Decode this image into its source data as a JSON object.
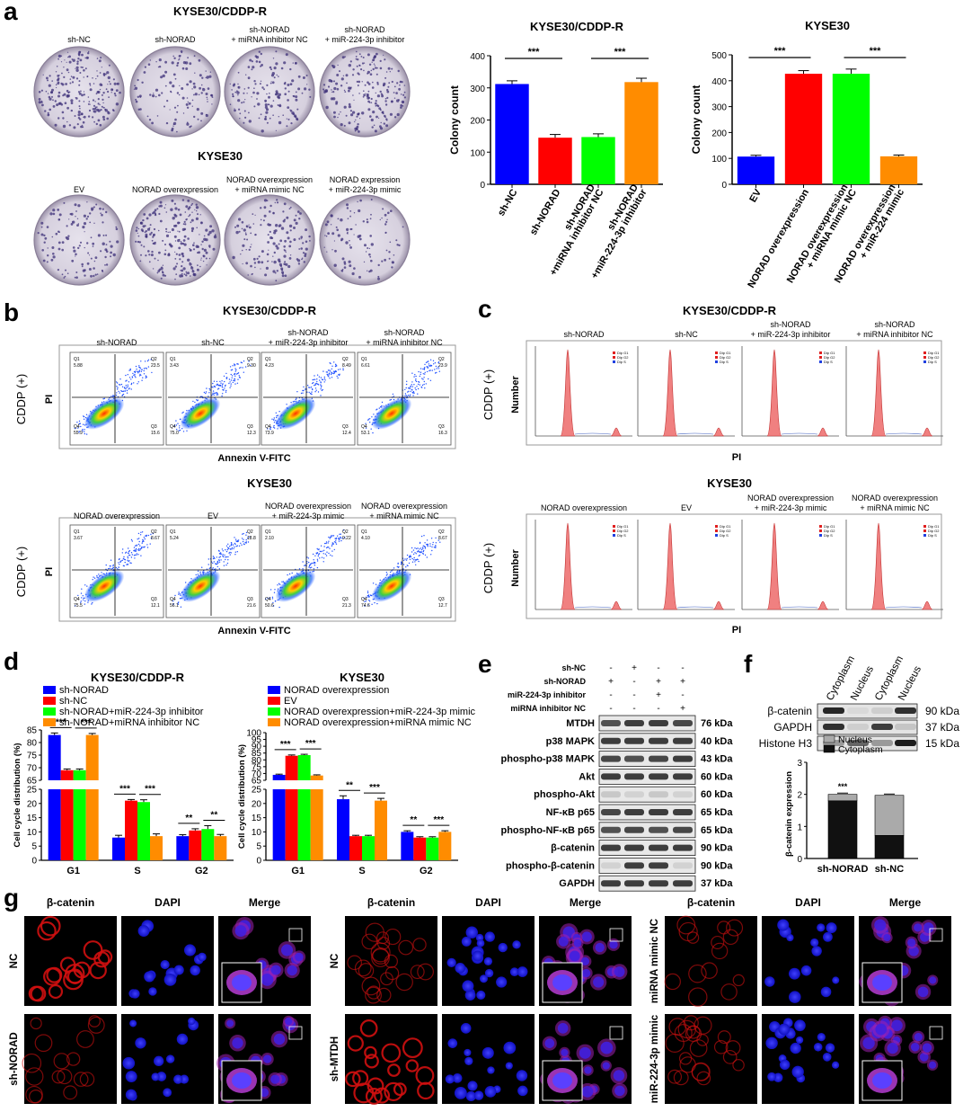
{
  "panels": {
    "a": "a",
    "b": "b",
    "c": "c",
    "d": "d",
    "e": "e",
    "f": "f",
    "g": "g"
  },
  "colony": {
    "title_top": "KYSE30/CDDP-R",
    "title_bottom": "KYSE30",
    "top_labels": [
      [
        "sh-NC"
      ],
      [
        "sh-NORAD"
      ],
      [
        "sh-NORAD",
        "+ miRNA inhibitor NC"
      ],
      [
        "sh-NORAD",
        "+ miR-224-3p inhibitor"
      ]
    ],
    "bottom_labels": [
      [
        "EV"
      ],
      [
        "NORAD overexpression"
      ],
      [
        "NORAD overexpression",
        "+ miRNA mimic NC"
      ],
      [
        "NORAD expression",
        "+ miR-224-3p mimic"
      ]
    ],
    "dish_density": [
      0.75,
      0.35,
      0.45,
      0.7,
      0.35,
      0.75,
      0.45,
      0.25
    ]
  },
  "flow": {
    "title_top": "KYSE30/CDDP-R",
    "title_bottom": "KYSE30",
    "row_label": "CDDP (+)",
    "ylabel": "PI",
    "xlabel": "Annexin V-FITC",
    "top_labels": [
      [
        "sh-NORAD"
      ],
      [
        "sh-NC"
      ],
      [
        "sh-NORAD",
        "+ miR-224-3p inhibitor"
      ],
      [
        "sh-NORAD",
        "+ miRNA inhibitor NC"
      ]
    ],
    "bottom_labels": [
      [
        "NORAD overexpression"
      ],
      [
        "EV"
      ],
      [
        "NORAD overexpression",
        "+ miR-224-3p mimic"
      ],
      [
        "NORAD overexpression",
        "+ miRNA mimic NC"
      ]
    ],
    "quadrants_top": [
      [
        "5.88",
        "23.5",
        "55.9",
        "15.6"
      ],
      [
        "3.43",
        "9.30",
        "75.0",
        "12.3"
      ],
      [
        "4.23",
        "8.49",
        "73.9",
        "12.4"
      ],
      [
        "6.61",
        "23.9",
        "53.1",
        "16.3"
      ]
    ],
    "quadrants_bottom": [
      [
        "3.67",
        "8.67",
        "75.5",
        "12.1"
      ],
      [
        "5.24",
        "18.8",
        "56.1",
        "21.6"
      ],
      [
        "2.10",
        "9.22",
        "50.6",
        "21.3"
      ],
      [
        "4.10",
        "8.67",
        "74.6",
        "12.7"
      ]
    ],
    "q_names": [
      "Q1",
      "Q2",
      "Q4",
      "Q3"
    ]
  },
  "cycle": {
    "title_top": "KYSE30/CDDP-R",
    "title_bottom": "KYSE30",
    "row_label": "CDDP (+)",
    "ylabel": "Number",
    "xlabel": "PI",
    "top_labels": [
      [
        "sh-NORAD"
      ],
      [
        "sh-NC"
      ],
      [
        "sh-NORAD",
        "+ miR-224-3p inhibitor"
      ],
      [
        "sh-NORAD",
        "+ miRNA inhibitor NC"
      ]
    ],
    "bottom_labels": [
      [
        "NORAD overexpression"
      ],
      [
        "EV"
      ],
      [
        "NORAD overexpression",
        "+ miR-224-3p mimic"
      ],
      [
        "NORAD overexpression",
        "+ miRNA mimic NC"
      ]
    ],
    "legend": [
      "Dip G1",
      "Dip G2",
      "Dip S"
    ]
  },
  "chart_data": [
    {
      "id": "a-left",
      "type": "bar",
      "title": "KYSE30/CDDP-R",
      "ylabel": "Colony count",
      "ylim": [
        0,
        400
      ],
      "yticks": [
        0,
        100,
        200,
        300,
        400
      ],
      "categories": [
        [
          "sh-NC"
        ],
        [
          "sh-NORAD"
        ],
        [
          "sh-NORAD",
          "+miRNA inhibitor NC"
        ],
        [
          "sh-NORAD",
          "+miR-224-3p inhibitor"
        ]
      ],
      "values": [
        312,
        145,
        147,
        318
      ],
      "errors": [
        10,
        10,
        10,
        12
      ],
      "colors": [
        "#0000ff",
        "#ff0000",
        "#00ff00",
        "#ff8c00"
      ],
      "significance": [
        {
          "from": 0,
          "to": 1,
          "label": "***"
        },
        {
          "from": 2,
          "to": 3,
          "label": "***"
        }
      ]
    },
    {
      "id": "a-right",
      "type": "bar",
      "title": "KYSE30",
      "ylabel": "Colony count",
      "ylim": [
        0,
        500
      ],
      "yticks": [
        0,
        100,
        200,
        300,
        400,
        500
      ],
      "categories": [
        [
          "EV"
        ],
        [
          "NORAD overexpression"
        ],
        [
          "NORAD overexpression",
          "+ miRNA mimic NC"
        ],
        [
          "NORAD overexpression",
          "+ miR-224 mimic"
        ]
      ],
      "values": [
        107,
        427,
        427,
        108
      ],
      "errors": [
        5,
        12,
        18,
        5
      ],
      "colors": [
        "#0000ff",
        "#ff0000",
        "#00ff00",
        "#ff8c00"
      ],
      "significance": [
        {
          "from": 0,
          "to": 1,
          "label": "***"
        },
        {
          "from": 2,
          "to": 3,
          "label": "***"
        }
      ]
    },
    {
      "id": "d-left",
      "type": "bar",
      "title": "KYSE30/CDDP-R",
      "ylabel": "Cell cycle distribution (%)",
      "categories": [
        "G1",
        "S",
        "G2"
      ],
      "series": [
        {
          "name": "sh-NORAD",
          "color": "#0000ff",
          "values": [
            83,
            8,
            8.5
          ],
          "errors": [
            0.8,
            0.8,
            0.5
          ]
        },
        {
          "name": "sh-NC",
          "color": "#ff0000",
          "values": [
            69,
            21,
            10.5
          ],
          "errors": [
            0.5,
            0.4,
            0.6
          ]
        },
        {
          "name": "sh-NORAD+miR-224-3p inhibitor",
          "color": "#00ff00",
          "values": [
            69,
            20.5,
            11
          ],
          "errors": [
            0.5,
            0.8,
            1.2
          ]
        },
        {
          "name": "sh-NORAD+miRNA inhibitor NC",
          "color": "#ff8c00",
          "values": [
            83,
            8.5,
            8.5
          ],
          "errors": [
            0.6,
            0.8,
            0.6
          ]
        }
      ],
      "significance": [
        {
          "group": 0,
          "pairs": [
            [
              0,
              1,
              "***"
            ],
            [
              2,
              3,
              "***"
            ]
          ]
        },
        {
          "group": 1,
          "pairs": [
            [
              0,
              1,
              "***"
            ],
            [
              2,
              3,
              "***"
            ]
          ]
        },
        {
          "group": 2,
          "pairs": [
            [
              0,
              1,
              "**"
            ],
            [
              2,
              3,
              "**"
            ]
          ]
        }
      ],
      "ticks_high": [
        65,
        70,
        75,
        80,
        85
      ],
      "ticks_low": [
        0,
        5,
        10,
        15,
        20,
        25
      ]
    },
    {
      "id": "d-right",
      "type": "bar",
      "title": "KYSE30",
      "ylabel": "Cell cycle distribution (%)",
      "categories": [
        "G1",
        "S",
        "G2"
      ],
      "series": [
        {
          "name": "NORAD overexpression",
          "color": "#0000ff",
          "values": [
            69,
            21.5,
            10
          ],
          "errors": [
            0.5,
            1.2,
            0.4
          ]
        },
        {
          "name": "EV",
          "color": "#ff0000",
          "values": [
            83,
            8.5,
            8
          ],
          "errors": [
            0.6,
            0.3,
            0.3
          ]
        },
        {
          "name": "NORAD overexpression+miR-224-3p mimic",
          "color": "#00ff00",
          "values": [
            83.5,
            8.5,
            8
          ],
          "errors": [
            0.6,
            0.3,
            0.3
          ]
        },
        {
          "name": "NORAD overexpression+miRNA mimic NC",
          "color": "#ff8c00",
          "values": [
            68.5,
            21,
            10
          ],
          "errors": [
            0.5,
            0.8,
            0.4
          ]
        }
      ],
      "significance": [
        {
          "group": 0,
          "pairs": [
            [
              0,
              1,
              "***"
            ],
            [
              2,
              3,
              "***"
            ]
          ]
        },
        {
          "group": 1,
          "pairs": [
            [
              0,
              1,
              "**"
            ],
            [
              2,
              3,
              "***"
            ]
          ]
        },
        {
          "group": 2,
          "pairs": [
            [
              0,
              1,
              "**"
            ],
            [
              2,
              3,
              "***"
            ]
          ]
        }
      ],
      "ticks_high": [
        65,
        70,
        75,
        80,
        85,
        90,
        95,
        100
      ],
      "ticks_low": [
        0,
        5,
        10,
        15,
        20,
        25
      ]
    },
    {
      "id": "f-bar",
      "type": "bar",
      "ylabel": "β-catenin expression",
      "ylim": [
        0,
        3
      ],
      "yticks": [
        0,
        1,
        2,
        3
      ],
      "categories": [
        "sh-NORAD",
        "sh-NC"
      ],
      "series": [
        {
          "name": "Cytoplasm",
          "color": "#111111",
          "values": [
            1.8,
            0.72
          ]
        },
        {
          "name": "Nucleus",
          "color": "#aaaaaa",
          "values": [
            0.2,
            1.25
          ]
        }
      ],
      "annotation": "***"
    }
  ],
  "western": {
    "conditions": [
      "sh-NC",
      "sh-NORAD",
      "miR-224-3p inhibitor",
      "miRNA inhibitor NC"
    ],
    "signs": [
      [
        "-",
        "+",
        "-",
        "-"
      ],
      [
        "+",
        "-",
        "+",
        "+"
      ],
      [
        "-",
        "-",
        "+",
        "-"
      ],
      [
        "-",
        "-",
        "-",
        "+"
      ]
    ],
    "bands": [
      {
        "name": "MTDH",
        "kda": "76 kDa"
      },
      {
        "name": "p38 MAPK",
        "kda": "40 kDa"
      },
      {
        "name": "phospho-p38 MAPK",
        "kda": "43 kDa"
      },
      {
        "name": "Akt",
        "kda": "60 kDa"
      },
      {
        "name": "phospho-Akt",
        "kda": "60 kDa"
      },
      {
        "name": "NF-κB p65",
        "kda": "65 kDa"
      },
      {
        "name": "phospho-NF-κB p65",
        "kda": "65 kDa"
      },
      {
        "name": "β-catenin",
        "kda": "90 kDa"
      },
      {
        "name": "phospho-β-catenin",
        "kda": "90 kDa"
      },
      {
        "name": "GAPDH",
        "kda": "37 kDa"
      }
    ]
  },
  "fractionation": {
    "columns": [
      "Cytoplasm",
      "Nucleus",
      "Cytoplasm",
      "Nucleus"
    ],
    "bands": [
      {
        "name": "β-catenin",
        "kda": "90 kDa"
      },
      {
        "name": "GAPDH",
        "kda": "37 kDa"
      },
      {
        "name": "Histone H3",
        "kda": "15 kDa"
      }
    ],
    "legend": [
      "Nucleus",
      "Cytoplasm"
    ]
  },
  "imaging": {
    "channels": [
      "β-catenin",
      "DAPI",
      "Merge"
    ],
    "groups": [
      {
        "rows": [
          "NC",
          "sh-NORAD"
        ]
      },
      {
        "rows": [
          "NC",
          "sh-MTDH"
        ]
      },
      {
        "rows": [
          "miRNA mimic NC",
          "miR-224-3p mimic"
        ]
      }
    ]
  }
}
